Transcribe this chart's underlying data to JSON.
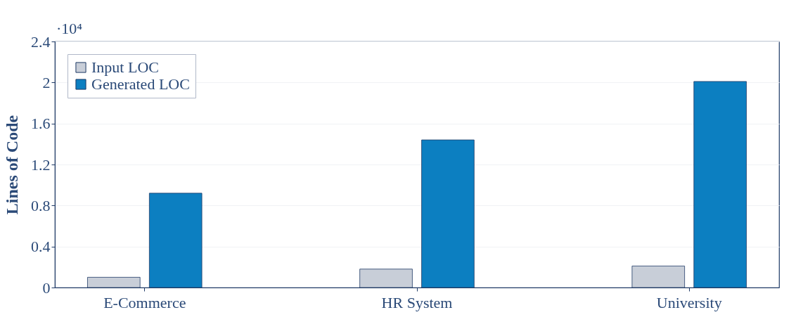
{
  "chart_data": {
    "type": "bar",
    "ylabel": "Lines of Code",
    "categories": [
      "E-Commerce",
      "HR System",
      "University"
    ],
    "series": [
      {
        "name": "Input LOC",
        "color": "#c8ced8",
        "values": [
          0.1,
          0.18,
          0.21
        ]
      },
      {
        "name": "Generated LOC",
        "color": "#0c7fc1",
        "values": [
          0.92,
          1.44,
          2.01
        ]
      }
    ],
    "ylim": [
      0,
      2.4
    ],
    "yticks": [
      0,
      0.4,
      0.8,
      1.2,
      1.6,
      2,
      2.4
    ],
    "grid": "y",
    "legend": "top left",
    "annotations": [
      "·10⁴"
    ]
  }
}
